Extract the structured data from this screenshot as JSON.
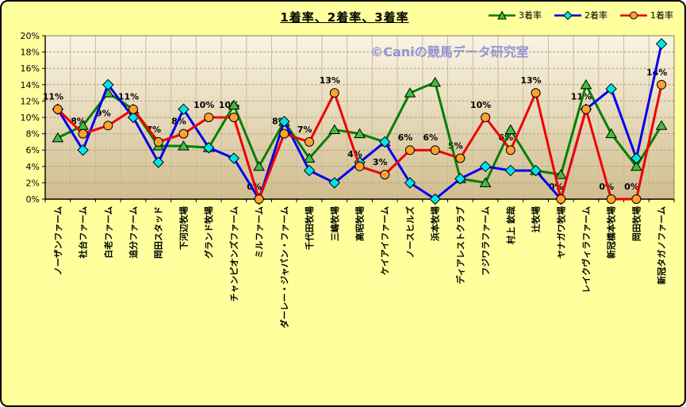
{
  "window": {
    "background": "#ffff9e",
    "border_color": "#000000"
  },
  "title": "1着率、2着率、3着率",
  "watermark": "©Caniの競馬データ研究室",
  "watermark_color": "#9393d8",
  "chart_data": {
    "type": "line",
    "title": "1着率、2着率、3着率",
    "xlabel": "",
    "ylabel": "",
    "ylim": [
      0,
      20
    ],
    "ytick_step": 2,
    "ytick_suffix": "%",
    "grid": {
      "horizontal_dashed": true,
      "vertical": true
    },
    "legend_position": "top-right",
    "plot_bg_gradient": [
      "#faf4e3",
      "#d0bd8f"
    ],
    "grid_color_h": "#b3a381",
    "grid_color_v": "#cbbb97",
    "categories": [
      "ノーザンファーム",
      "社台ファーム",
      "白老ファーム",
      "追分ファーム",
      "岡田スタッド",
      "下河辺牧場",
      "グランド牧場",
      "チャンピオンズファーム",
      "ミルファーム",
      "ダーレー・ジャパン・ファーム",
      "千代田牧場",
      "三嶋牧場",
      "高昭牧場",
      "ケイアイファーム",
      "ノースヒルズ",
      "浜本牧場",
      "ディアレストクラブ",
      "フジワラファーム",
      "村上 欽哉",
      "辻牧場",
      "ヤナガワ牧場",
      "レイクヴィラファーム",
      "新冠橋本牧場",
      "岡田牧場",
      "新冠タガノファーム"
    ],
    "series": [
      {
        "name": "3着率",
        "line_color": "#008000",
        "marker": "triangle",
        "marker_fill": "#3fbf3f",
        "values": [
          7.5,
          9,
          13,
          11,
          6.5,
          6.5,
          6.3,
          11.5,
          4,
          9.5,
          5,
          8.5,
          8,
          7,
          13,
          14.3,
          2.5,
          2,
          8.5,
          3.5,
          3,
          14,
          8,
          4,
          9
        ]
      },
      {
        "name": "2着率",
        "line_color": "#0000ee",
        "marker": "diamond",
        "marker_fill": "#00e6e6",
        "values": [
          11,
          6,
          14,
          10,
          4.5,
          11,
          6.3,
          5,
          0,
          9.5,
          3.5,
          2,
          4.5,
          7,
          2,
          0,
          2.5,
          4,
          3.5,
          3.5,
          0,
          11,
          13.5,
          5,
          19
        ]
      },
      {
        "name": "1着率",
        "line_color": "#ee0000",
        "marker": "circle",
        "marker_fill": "#ffa030",
        "values": [
          11,
          8,
          9,
          11,
          7,
          8,
          10,
          10,
          0,
          8,
          7,
          13,
          4,
          3,
          6,
          6,
          5,
          10,
          6,
          13,
          0,
          11,
          0,
          0,
          14
        ],
        "data_labels": [
          "11%",
          "8%",
          "9%",
          "11%",
          "7%",
          "8%",
          "10%",
          "10%",
          "0%",
          "8%",
          "7%",
          "13%",
          "4%",
          "3%",
          "6%",
          "6%",
          "5%",
          "10%",
          "6%",
          "13%",
          "0%",
          "11%",
          "0%",
          "0%",
          "14%"
        ]
      }
    ]
  }
}
